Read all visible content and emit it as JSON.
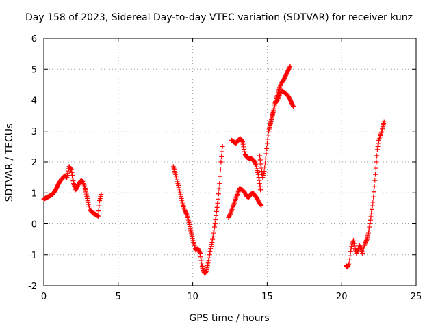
{
  "chart_data": {
    "type": "scatter",
    "title": "Day 158 of 2023, Sidereal Day-to-day VTEC variation (SDTVAR) for receiver kunz",
    "xlabel": "GPS time / hours",
    "ylabel": "SDTVAR / TECUs",
    "xlim": [
      0,
      25
    ],
    "ylim": [
      -2,
      6
    ],
    "xticks": [
      "0",
      "5",
      "10",
      "15",
      "20",
      "25"
    ],
    "yticks": [
      "-2",
      "-1",
      "0",
      "1",
      "2",
      "3",
      "4",
      "5",
      "6"
    ],
    "grid": true,
    "marker": "plus",
    "color": "#ff0000",
    "series": [
      {
        "name": "segment-1",
        "points": [
          [
            0.0,
            0.8
          ],
          [
            0.2,
            0.85
          ],
          [
            0.4,
            0.9
          ],
          [
            0.6,
            0.95
          ],
          [
            0.8,
            1.1
          ],
          [
            1.0,
            1.3
          ],
          [
            1.2,
            1.45
          ],
          [
            1.4,
            1.55
          ],
          [
            1.55,
            1.5
          ],
          [
            1.7,
            1.85
          ],
          [
            1.85,
            1.75
          ],
          [
            2.0,
            1.3
          ],
          [
            2.15,
            1.1
          ],
          [
            2.3,
            1.25
          ],
          [
            2.5,
            1.4
          ],
          [
            2.65,
            1.35
          ],
          [
            2.8,
            1.1
          ],
          [
            2.95,
            0.75
          ],
          [
            3.1,
            0.45
          ],
          [
            3.3,
            0.35
          ],
          [
            3.5,
            0.3
          ],
          [
            3.65,
            0.25
          ],
          [
            3.75,
            0.75
          ],
          [
            3.85,
            0.95
          ]
        ]
      },
      {
        "name": "segment-2",
        "points": [
          [
            8.7,
            1.85
          ],
          [
            8.85,
            1.6
          ],
          [
            9.0,
            1.3
          ],
          [
            9.15,
            1.0
          ],
          [
            9.3,
            0.7
          ],
          [
            9.45,
            0.45
          ],
          [
            9.6,
            0.3
          ],
          [
            9.75,
            0.05
          ],
          [
            9.9,
            -0.3
          ],
          [
            10.05,
            -0.6
          ],
          [
            10.2,
            -0.85
          ],
          [
            10.35,
            -0.8
          ],
          [
            10.5,
            -0.95
          ],
          [
            10.6,
            -1.3
          ],
          [
            10.7,
            -1.5
          ],
          [
            10.8,
            -1.6
          ],
          [
            10.9,
            -1.55
          ],
          [
            11.0,
            -1.35
          ],
          [
            11.1,
            -1.1
          ],
          [
            11.2,
            -0.8
          ],
          [
            11.3,
            -0.6
          ],
          [
            11.4,
            -0.3
          ],
          [
            11.5,
            0.0
          ],
          [
            11.6,
            0.4
          ],
          [
            11.7,
            0.8
          ],
          [
            11.8,
            1.3
          ],
          [
            11.9,
            2.0
          ],
          [
            12.0,
            2.5
          ]
        ]
      },
      {
        "name": "segment-3",
        "points": [
          [
            12.4,
            0.2
          ],
          [
            12.55,
            0.35
          ],
          [
            12.7,
            0.55
          ],
          [
            12.85,
            0.75
          ],
          [
            13.0,
            0.95
          ],
          [
            13.15,
            1.15
          ],
          [
            13.3,
            1.1
          ],
          [
            13.45,
            1.05
          ],
          [
            13.6,
            0.9
          ],
          [
            13.75,
            0.85
          ],
          [
            13.9,
            0.95
          ],
          [
            14.05,
            1.0
          ],
          [
            14.2,
            0.9
          ],
          [
            14.35,
            0.8
          ],
          [
            14.5,
            0.65
          ],
          [
            14.6,
            0.6
          ]
        ]
      },
      {
        "name": "segment-4",
        "points": [
          [
            12.6,
            2.7
          ],
          [
            12.75,
            2.65
          ],
          [
            12.9,
            2.6
          ],
          [
            13.05,
            2.7
          ],
          [
            13.2,
            2.75
          ],
          [
            13.35,
            2.65
          ],
          [
            13.5,
            2.25
          ],
          [
            13.65,
            2.15
          ],
          [
            13.8,
            2.1
          ],
          [
            13.95,
            2.1
          ],
          [
            14.1,
            2.05
          ],
          [
            14.25,
            1.9
          ],
          [
            14.4,
            1.6
          ],
          [
            14.5,
            1.3
          ],
          [
            14.55,
            1.1
          ]
        ]
      },
      {
        "name": "segment-5",
        "points": [
          [
            14.5,
            2.2
          ],
          [
            14.6,
            1.8
          ],
          [
            14.7,
            1.5
          ],
          [
            14.8,
            1.7
          ],
          [
            14.9,
            2.1
          ],
          [
            15.0,
            2.6
          ],
          [
            15.1,
            3.0
          ],
          [
            15.25,
            3.3
          ],
          [
            15.4,
            3.6
          ],
          [
            15.55,
            3.9
          ],
          [
            15.7,
            4.0
          ],
          [
            15.85,
            4.2
          ],
          [
            16.0,
            4.3
          ],
          [
            16.15,
            4.25
          ],
          [
            16.3,
            4.2
          ],
          [
            16.45,
            4.1
          ],
          [
            16.6,
            3.95
          ],
          [
            16.75,
            3.8
          ]
        ]
      },
      {
        "name": "segment-6",
        "points": [
          [
            15.2,
            3.2
          ],
          [
            15.35,
            3.5
          ],
          [
            15.5,
            3.85
          ],
          [
            15.65,
            4.1
          ],
          [
            15.8,
            4.35
          ],
          [
            15.95,
            4.55
          ],
          [
            16.1,
            4.65
          ],
          [
            16.25,
            4.8
          ],
          [
            16.4,
            4.95
          ],
          [
            16.55,
            5.1
          ]
        ]
      },
      {
        "name": "segment-7",
        "points": [
          [
            20.3,
            -1.35
          ],
          [
            20.4,
            -1.4
          ],
          [
            20.5,
            -1.3
          ],
          [
            20.6,
            -0.9
          ],
          [
            20.7,
            -0.65
          ],
          [
            20.8,
            -0.55
          ],
          [
            20.9,
            -0.8
          ],
          [
            21.0,
            -0.95
          ],
          [
            21.1,
            -0.85
          ],
          [
            21.2,
            -0.7
          ],
          [
            21.3,
            -0.8
          ],
          [
            21.4,
            -0.95
          ],
          [
            21.5,
            -0.75
          ],
          [
            21.6,
            -0.6
          ],
          [
            21.7,
            -0.5
          ],
          [
            21.8,
            -0.3
          ],
          [
            21.9,
            0.0
          ],
          [
            22.0,
            0.35
          ],
          [
            22.1,
            0.7
          ],
          [
            22.2,
            1.2
          ],
          [
            22.3,
            1.8
          ],
          [
            22.4,
            2.4
          ],
          [
            22.5,
            2.7
          ],
          [
            22.6,
            2.85
          ],
          [
            22.7,
            3.0
          ],
          [
            22.8,
            3.2
          ],
          [
            22.85,
            3.3
          ]
        ]
      }
    ]
  }
}
